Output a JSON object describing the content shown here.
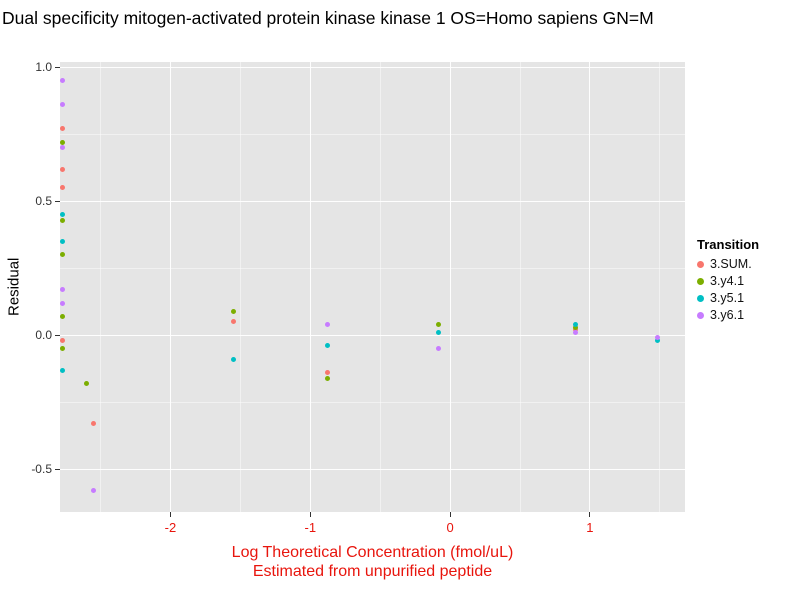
{
  "title": "Dual specificity mitogen-activated protein kinase kinase 1 OS=Homo sapiens GN=M",
  "y_axis": {
    "label": "Residual",
    "ticks": [
      "1.0",
      "0.5",
      "0.0",
      "-0.5"
    ],
    "tick_values": [
      1.0,
      0.5,
      0.0,
      -0.5
    ]
  },
  "x_axis": {
    "label_line1": "Log Theoretical Concentration (fmol/uL)",
    "label_line2": "Estimated from unpurified peptide",
    "ticks": [
      "-2",
      "-1",
      "0",
      "1"
    ],
    "tick_values": [
      -2,
      -1,
      0,
      1
    ],
    "color": "#e8150d"
  },
  "legend": {
    "title": "Transition",
    "items": [
      {
        "label": "3.SUM.",
        "color": "#F8766D"
      },
      {
        "label": "3.y4.1",
        "color": "#7CAE00"
      },
      {
        "label": "3.y5.1",
        "color": "#00BFC4"
      },
      {
        "label": "3.y6.1",
        "color": "#C77CFF"
      }
    ]
  },
  "chart_data": {
    "type": "scatter",
    "title": "Dual specificity mitogen-activated protein kinase kinase 1 OS=Homo sapiens GN=M",
    "xlabel": "Log Theoretical Concentration (fmol/uL) Estimated from unpurified peptide",
    "ylabel": "Residual",
    "xlim": [
      -2.79,
      1.68
    ],
    "ylim": [
      -0.66,
      1.02
    ],
    "x_ticks": [
      -2,
      -1,
      0,
      1
    ],
    "y_ticks": [
      1.0,
      0.5,
      0.0,
      -0.5
    ],
    "grid": true,
    "legend_position": "right",
    "panel_background": "#E5E5E5",
    "series": [
      {
        "name": "3.SUM.",
        "color": "#F8766D",
        "points": [
          [
            -2.77,
            0.77
          ],
          [
            -2.77,
            0.62
          ],
          [
            -2.77,
            0.55
          ],
          [
            -2.77,
            -0.02
          ],
          [
            -2.55,
            -0.33
          ],
          [
            -1.55,
            0.05
          ],
          [
            -0.88,
            -0.14
          ],
          [
            0.9,
            0.02
          ]
        ]
      },
      {
        "name": "3.y4.1",
        "color": "#7CAE00",
        "points": [
          [
            -2.77,
            0.72
          ],
          [
            -2.77,
            0.43
          ],
          [
            -2.77,
            0.3
          ],
          [
            -2.77,
            0.07
          ],
          [
            -2.77,
            -0.05
          ],
          [
            -2.6,
            -0.18
          ],
          [
            -1.55,
            0.09
          ],
          [
            -0.88,
            -0.16
          ],
          [
            -0.08,
            0.04
          ],
          [
            0.9,
            0.03
          ]
        ]
      },
      {
        "name": "3.y5.1",
        "color": "#00BFC4",
        "points": [
          [
            -2.77,
            0.45
          ],
          [
            -2.77,
            0.35
          ],
          [
            -2.77,
            -0.13
          ],
          [
            -1.55,
            -0.09
          ],
          [
            -0.88,
            -0.04
          ],
          [
            -0.08,
            0.01
          ],
          [
            0.9,
            0.04
          ],
          [
            1.48,
            -0.02
          ]
        ]
      },
      {
        "name": "3.y6.1",
        "color": "#C77CFF",
        "points": [
          [
            -2.77,
            0.95
          ],
          [
            -2.77,
            0.86
          ],
          [
            -2.77,
            0.7
          ],
          [
            -2.77,
            0.17
          ],
          [
            -2.77,
            0.12
          ],
          [
            -2.55,
            -0.58
          ],
          [
            -0.88,
            0.04
          ],
          [
            -0.08,
            -0.05
          ],
          [
            0.9,
            0.01
          ],
          [
            1.48,
            -0.01
          ]
        ]
      }
    ]
  }
}
